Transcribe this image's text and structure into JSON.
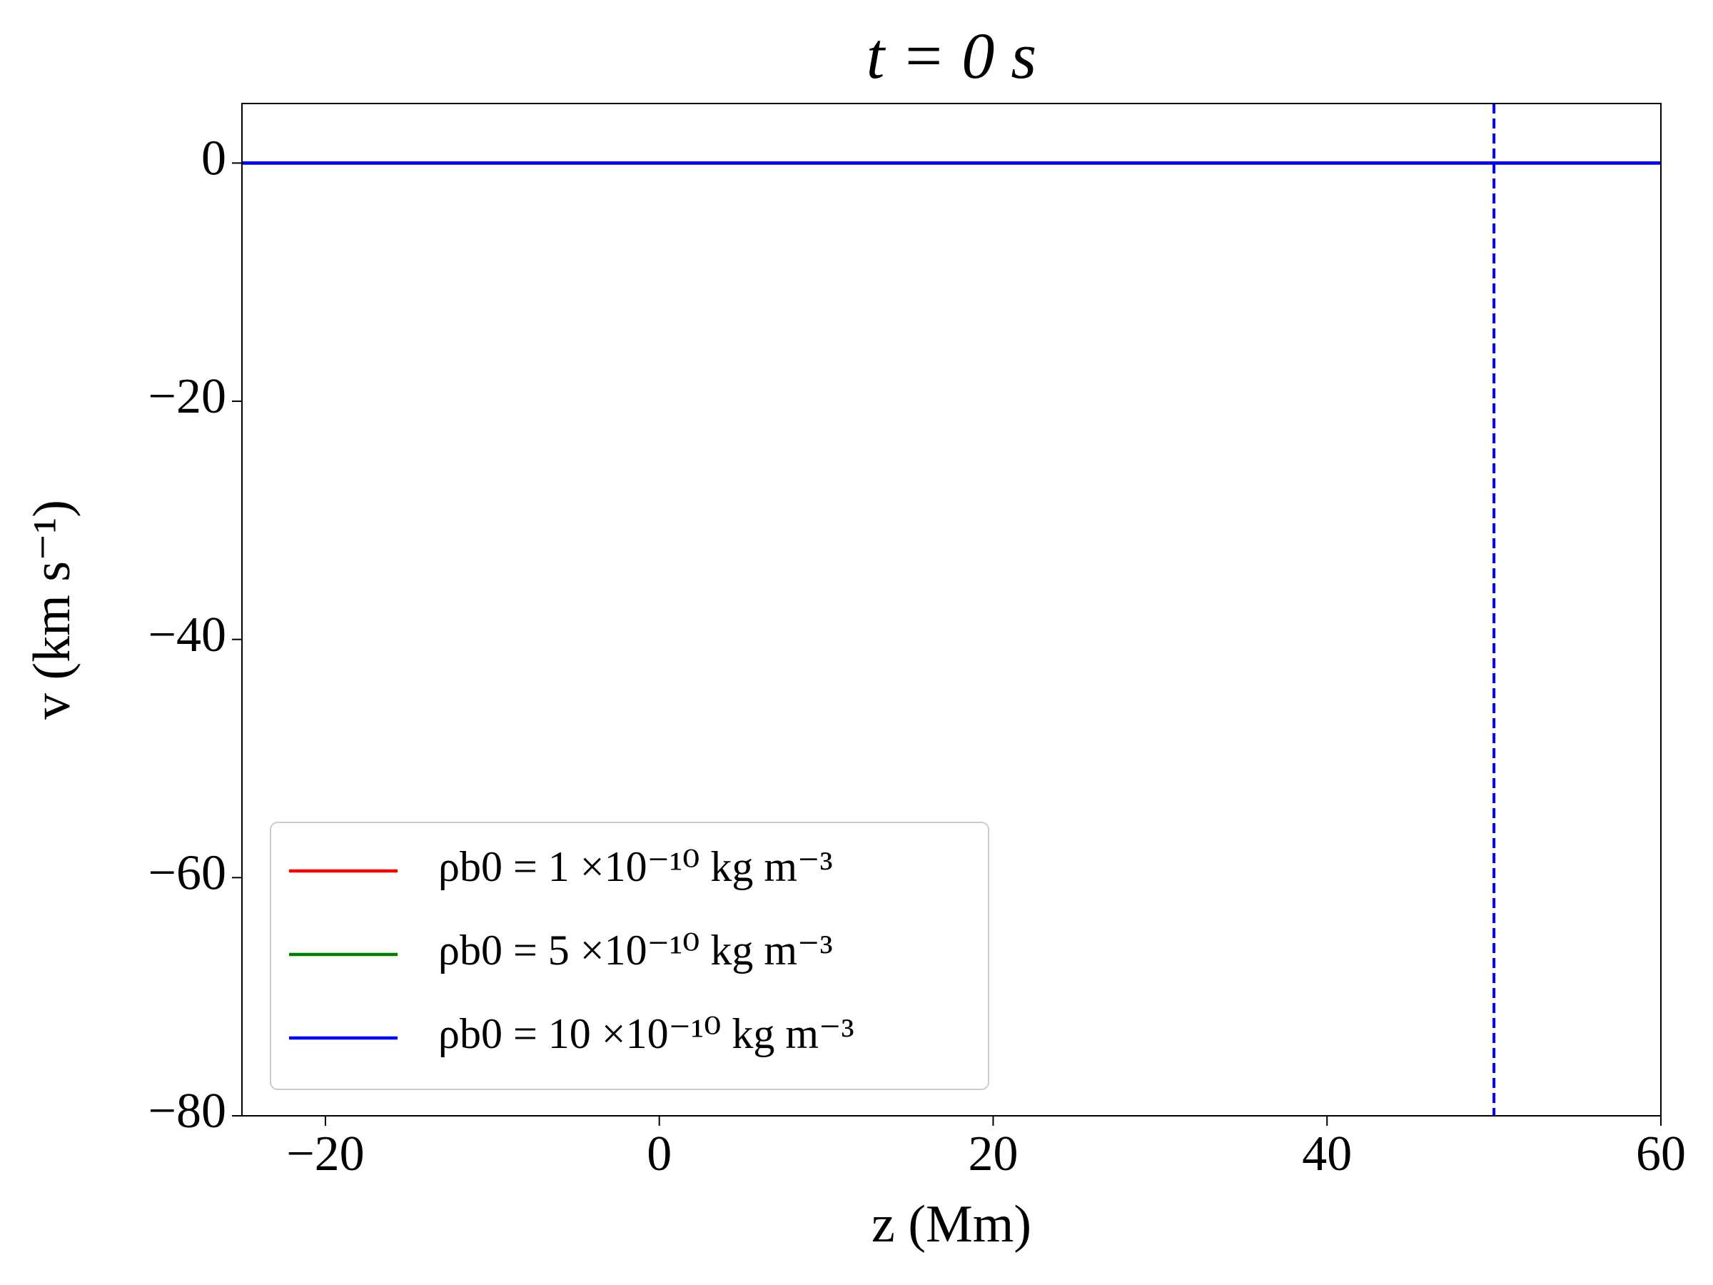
{
  "chart_data": {
    "type": "line",
    "title": "t = 0 s",
    "xlabel": "z (Mm)",
    "ylabel": "v (km s⁻¹)",
    "x": [
      -25,
      60
    ],
    "series": [
      {
        "name": "ρb0 = 1 ×10⁻¹⁰ kg m⁻³",
        "color": "#ff0000",
        "values": [
          0,
          0
        ]
      },
      {
        "name": "ρb0 = 5 ×10⁻¹⁰ kg m⁻³",
        "color": "#008000",
        "values": [
          0,
          0
        ]
      },
      {
        "name": "ρb0 = 10 ×10⁻¹⁰ kg m⁻³",
        "color": "#0000ff",
        "values": [
          0,
          0
        ]
      }
    ],
    "vlines": [
      {
        "x": 50,
        "color": "#0000ff",
        "style": "dashed"
      }
    ],
    "xlim": [
      -25,
      60
    ],
    "ylim": [
      -80,
      5
    ],
    "xticks": [
      {
        "value": -20,
        "label": "−20"
      },
      0,
      20,
      40,
      60
    ],
    "yticks": [
      0,
      {
        "value": -20,
        "label": "−20"
      },
      {
        "value": -40,
        "label": "−40"
      },
      {
        "value": -60,
        "label": "−60"
      },
      {
        "value": -80,
        "label": "−80"
      }
    ],
    "grid": false,
    "legend": "lower left"
  }
}
